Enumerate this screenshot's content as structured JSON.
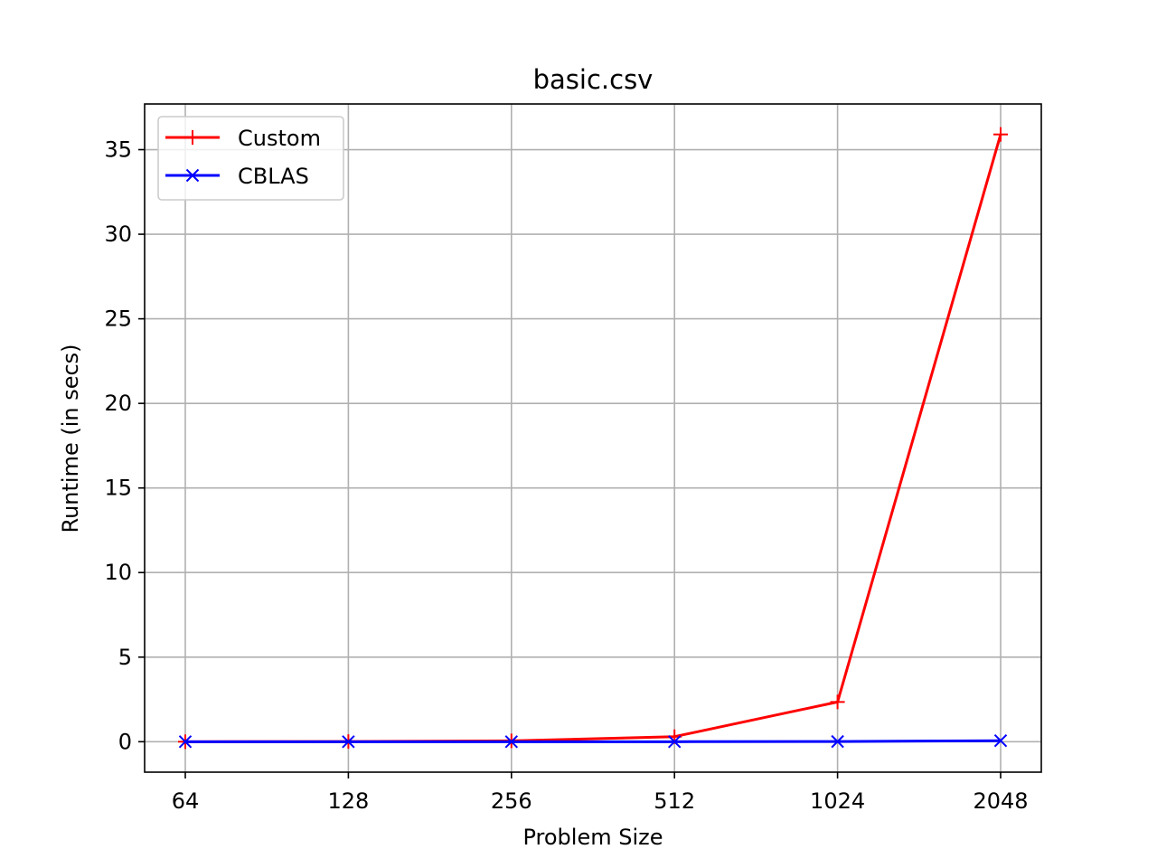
{
  "chart_data": {
    "type": "line",
    "title": "basic.csv",
    "xlabel": "Problem Size",
    "ylabel": "Runtime (in secs)",
    "x": [
      "64",
      "128",
      "256",
      "512",
      "1024",
      "2048"
    ],
    "ylim": [
      -1.8,
      37.7
    ],
    "yticks": [
      0,
      5,
      10,
      15,
      20,
      25,
      30,
      35
    ],
    "grid": true,
    "legend_position": "upper-left",
    "series": [
      {
        "name": "Custom",
        "color": "#ff0000",
        "marker": "plus",
        "values": [
          0.0,
          0.01,
          0.05,
          0.3,
          2.35,
          35.9
        ]
      },
      {
        "name": "CBLAS",
        "color": "#0000ff",
        "marker": "x",
        "values": [
          0.0,
          0.0,
          0.0,
          0.0,
          0.01,
          0.06
        ]
      }
    ]
  }
}
